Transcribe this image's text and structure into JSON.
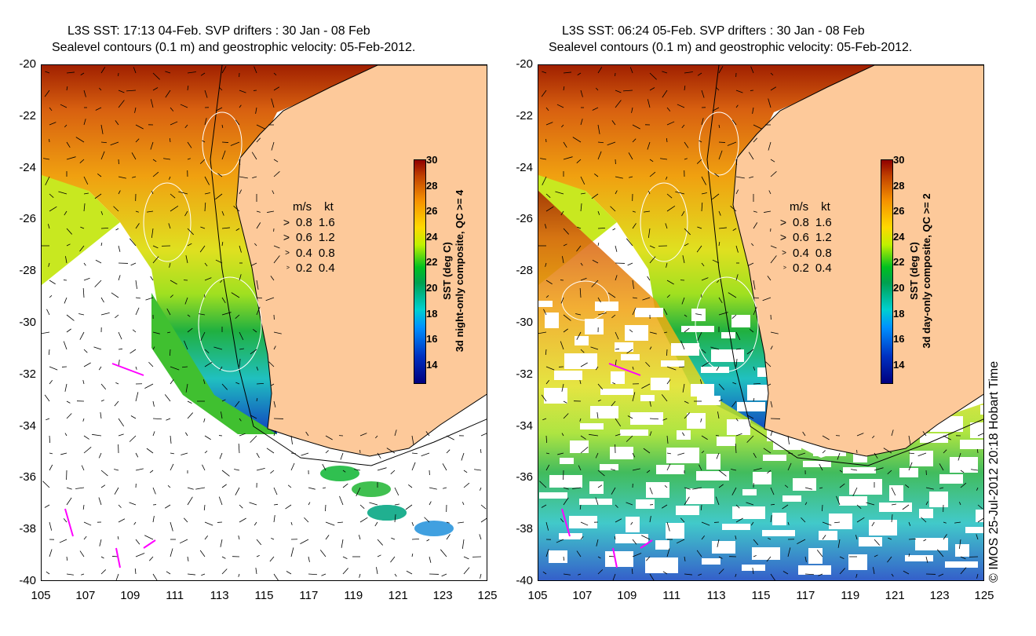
{
  "left": {
    "title_line1": "L3S SST: 17:13 04-Feb. SVP drifters : 30 Jan - 08 Feb",
    "title_line2": "Sealevel contours (0.1 m) and geostrophic velocity: 05-Feb-2012.",
    "colorbar_title": "SST (deg C)",
    "colorbar_subtitle": "3d night-only composite, QC >= 4"
  },
  "right": {
    "title_line1": "L3S SST: 06:24 05-Feb. SVP drifters : 30 Jan - 08 Feb",
    "title_line2": "Sealevel contours (0.1 m) and geostrophic velocity: 05-Feb-2012.",
    "colorbar_title": "SST (deg C)",
    "colorbar_subtitle": "3d day-only composite, QC >= 2"
  },
  "y_ticks": [
    "-20",
    "-22",
    "-24",
    "-26",
    "-28",
    "-30",
    "-32",
    "-34",
    "-36",
    "-38",
    "-40"
  ],
  "x_ticks": [
    "105",
    "107",
    "109",
    "111",
    "113",
    "115",
    "117",
    "119",
    "121",
    "123",
    "125"
  ],
  "colorbar_ticks": [
    "30",
    "28",
    "26",
    "24",
    "22",
    "20",
    "18",
    "16",
    "14"
  ],
  "velocity_legend": {
    "header_ms": "m/s",
    "header_kt": "kt",
    "rows": [
      {
        "ms": "0.8",
        "kt": "1.6"
      },
      {
        "ms": "0.6",
        "kt": "1.2"
      },
      {
        "ms": "0.4",
        "kt": "0.8"
      },
      {
        "ms": "0.2",
        "kt": "0.4"
      }
    ]
  },
  "colors": {
    "land": "#fdc99a",
    "drifter": "#ff00ff"
  },
  "credit": "© IMOS 25-Jul-2012 20:18 Hobart Time"
}
